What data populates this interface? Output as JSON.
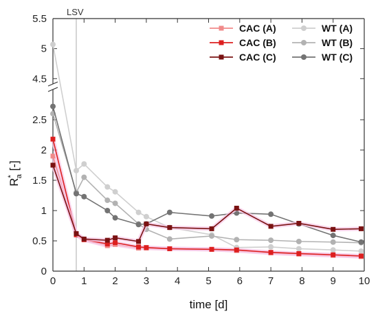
{
  "chart_data": {
    "type": "line",
    "xlabel": "time [d]",
    "ylabel_base": "R",
    "ylabel_sub": "a",
    "ylabel_sup": "*",
    "ylabel_unit": " [-]",
    "xlim": [
      0,
      10
    ],
    "ylim_lower": [
      0,
      3
    ],
    "ylim_upper": [
      4.4,
      5.5
    ],
    "axis_break": true,
    "x_ticks": [
      0,
      1,
      2,
      3,
      4,
      5,
      6,
      7,
      8,
      9,
      10
    ],
    "y_ticks_lower": [
      0,
      0.5,
      1,
      1.5,
      2,
      2.5
    ],
    "y_ticks_upper": [
      4.5,
      5,
      5.5
    ],
    "annotation": {
      "x": 0.75,
      "label": "LSV"
    },
    "legend_placement": "top-right",
    "series": [
      {
        "name": "CAC (A)",
        "color": "#f08a8a",
        "x": [
          0,
          0.75,
          1,
          1.75,
          2,
          2.75,
          3,
          3.75,
          5.1,
          5.9,
          7,
          7.9,
          9,
          9.9
        ],
        "y": [
          1.9,
          0.6,
          0.52,
          0.42,
          0.44,
          0.38,
          0.38,
          0.37,
          0.36,
          0.34,
          0.3,
          0.28,
          0.26,
          0.24
        ]
      },
      {
        "name": "CAC (B)",
        "color": "#dd1f1f",
        "x": [
          0,
          0.75,
          1,
          1.75,
          2,
          2.75,
          3,
          3.75,
          5.1,
          5.9,
          7,
          7.9,
          9,
          9.9
        ],
        "y": [
          2.18,
          0.6,
          0.52,
          0.45,
          0.47,
          0.4,
          0.39,
          0.37,
          0.36,
          0.35,
          0.31,
          0.29,
          0.27,
          0.25
        ]
      },
      {
        "name": "CAC (C)",
        "color": "#7a1212",
        "x": [
          0,
          0.75,
          1,
          1.75,
          2,
          2.75,
          3,
          3.75,
          5.1,
          5.9,
          7,
          7.9,
          9,
          9.9
        ],
        "y": [
          1.75,
          0.62,
          0.53,
          0.51,
          0.55,
          0.49,
          0.78,
          0.72,
          0.7,
          1.04,
          0.74,
          0.79,
          0.69,
          0.7
        ]
      },
      {
        "name": "WT (A)",
        "color": "#cfcfcf",
        "x": [
          0,
          0.75,
          1,
          1.75,
          2,
          2.75,
          3,
          3.75,
          5.1,
          5.9,
          7,
          7.9,
          9,
          9.9
        ],
        "y": [
          5.07,
          1.66,
          1.77,
          1.39,
          1.31,
          0.97,
          0.9,
          0.72,
          0.6,
          0.39,
          0.4,
          0.37,
          0.35,
          0.33
        ]
      },
      {
        "name": "WT (B)",
        "color": "#b2b2b2",
        "x": [
          0,
          0.75,
          1,
          1.75,
          2,
          2.75,
          3,
          3.75,
          5.1,
          5.9,
          7,
          7.9,
          9,
          9.9
        ],
        "y": [
          2.6,
          1.3,
          1.55,
          1.17,
          1.12,
          0.78,
          0.69,
          0.53,
          0.58,
          0.52,
          0.51,
          0.49,
          0.48,
          0.47
        ]
      },
      {
        "name": "WT (C)",
        "color": "#737373",
        "x": [
          0,
          0.75,
          1,
          1.75,
          2,
          2.75,
          3,
          3.75,
          5.1,
          5.9,
          7,
          7.9,
          9,
          9.9
        ],
        "y": [
          2.72,
          1.28,
          1.23,
          1.0,
          0.88,
          0.77,
          0.78,
          0.97,
          0.91,
          0.96,
          0.94,
          0.78,
          0.59,
          0.48
        ]
      }
    ]
  }
}
